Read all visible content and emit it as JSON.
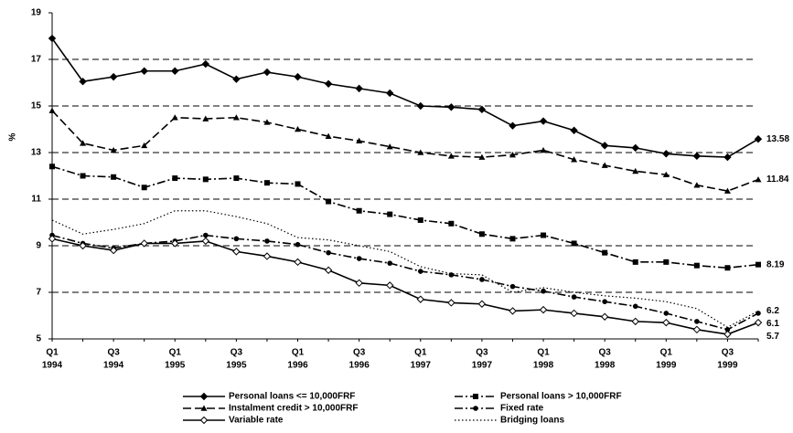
{
  "chart_data": {
    "type": "line",
    "y_label": "%",
    "categories": [
      [
        "Q1",
        "1994"
      ],
      null,
      [
        "Q3",
        "1994"
      ],
      null,
      [
        "Q1",
        "1995"
      ],
      null,
      [
        "Q3",
        "1995"
      ],
      null,
      [
        "Q1",
        "1996"
      ],
      null,
      [
        "Q3",
        "1996"
      ],
      null,
      [
        "Q1",
        "1997"
      ],
      null,
      [
        "Q3",
        "1997"
      ],
      null,
      [
        "Q1",
        "1998"
      ],
      null,
      [
        "Q3",
        "1998"
      ],
      null,
      [
        "Q1",
        "1999"
      ],
      null,
      [
        "Q3",
        "1999"
      ],
      null
    ],
    "ylim": [
      5,
      19
    ],
    "yticks": [
      5,
      7,
      9,
      11,
      13,
      15,
      17,
      19
    ],
    "grid": true,
    "legend": "bottom",
    "series": [
      {
        "name": "Personal loans <= 10,000FRF",
        "color": "#000000",
        "dash": "solid",
        "marker": "diamond",
        "values": [
          17.9,
          16.05,
          16.25,
          16.5,
          16.5,
          16.8,
          16.15,
          16.45,
          16.25,
          15.95,
          15.75,
          15.55,
          15.0,
          14.95,
          14.85,
          14.15,
          14.35,
          13.95,
          13.3,
          13.2,
          12.95,
          12.85,
          12.8,
          13.58
        ],
        "value_labels": [
          null,
          null,
          null,
          null,
          null,
          null,
          null,
          null,
          null,
          null,
          null,
          null,
          null,
          null,
          null,
          null,
          null,
          null,
          null,
          null,
          null,
          null,
          null,
          "13.58"
        ]
      },
      {
        "name": "Personal loans > 10,000FRF",
        "color": "#000000",
        "dash": "dashdot",
        "marker": "square",
        "values": [
          12.4,
          12.0,
          11.95,
          11.5,
          11.9,
          11.85,
          11.9,
          11.7,
          11.65,
          10.9,
          10.5,
          10.35,
          10.1,
          9.95,
          9.5,
          9.3,
          9.45,
          9.1,
          8.7,
          8.3,
          8.3,
          8.15,
          8.05,
          8.19
        ],
        "value_labels": [
          null,
          null,
          null,
          null,
          null,
          null,
          null,
          null,
          null,
          null,
          null,
          null,
          null,
          null,
          null,
          null,
          null,
          null,
          null,
          null,
          null,
          null,
          null,
          "8.19"
        ]
      },
      {
        "name": "Instalment credit > 10,000FRF",
        "color": "#000000",
        "dash": "dash",
        "marker": "triangle",
        "values": [
          14.8,
          13.4,
          13.1,
          13.3,
          14.5,
          14.45,
          14.5,
          14.3,
          14.0,
          13.7,
          13.5,
          13.25,
          13.0,
          12.85,
          12.8,
          12.9,
          13.1,
          12.7,
          12.45,
          12.2,
          12.05,
          11.6,
          11.35,
          11.84
        ],
        "value_labels": [
          null,
          null,
          null,
          null,
          null,
          null,
          null,
          null,
          null,
          null,
          null,
          null,
          null,
          null,
          null,
          null,
          null,
          null,
          null,
          null,
          null,
          null,
          null,
          "11.84"
        ]
      },
      {
        "name": "Fixed rate",
        "color": "#000000",
        "dash": "dashdot",
        "marker": "circle",
        "values": [
          9.45,
          9.1,
          8.9,
          9.1,
          9.2,
          9.45,
          9.3,
          9.2,
          9.05,
          8.7,
          8.45,
          8.25,
          7.9,
          7.75,
          7.55,
          7.25,
          7.05,
          6.8,
          6.6,
          6.4,
          6.1,
          5.75,
          5.4,
          6.1
        ],
        "value_labels": [
          null,
          null,
          null,
          null,
          null,
          null,
          null,
          null,
          null,
          null,
          null,
          null,
          null,
          null,
          null,
          null,
          null,
          null,
          null,
          null,
          null,
          null,
          null,
          "6.1"
        ]
      },
      {
        "name": "Variable rate",
        "color": "#000000",
        "dash": "solid",
        "marker": "open-diamond",
        "values": [
          9.3,
          9.0,
          8.8,
          9.1,
          9.1,
          9.2,
          8.75,
          8.55,
          8.3,
          7.95,
          7.4,
          7.3,
          6.7,
          6.55,
          6.5,
          6.2,
          6.25,
          6.1,
          5.95,
          5.75,
          5.7,
          5.4,
          5.2,
          5.7
        ],
        "value_labels": [
          null,
          null,
          null,
          null,
          null,
          null,
          null,
          null,
          null,
          null,
          null,
          null,
          null,
          null,
          null,
          null,
          null,
          null,
          null,
          null,
          null,
          null,
          null,
          "5.7"
        ]
      },
      {
        "name": "Bridging loans",
        "color": "#000000",
        "dash": "dot",
        "marker": "none",
        "values": [
          10.1,
          9.5,
          9.7,
          9.95,
          10.5,
          10.5,
          10.25,
          9.95,
          9.35,
          9.25,
          9.0,
          8.75,
          8.1,
          7.8,
          7.75,
          7.0,
          7.2,
          7.0,
          6.85,
          6.75,
          6.6,
          6.3,
          5.5,
          6.2
        ],
        "value_labels": [
          null,
          null,
          null,
          null,
          null,
          null,
          null,
          null,
          null,
          null,
          null,
          null,
          null,
          null,
          null,
          null,
          null,
          null,
          null,
          null,
          null,
          null,
          null,
          "6.2"
        ]
      }
    ]
  }
}
